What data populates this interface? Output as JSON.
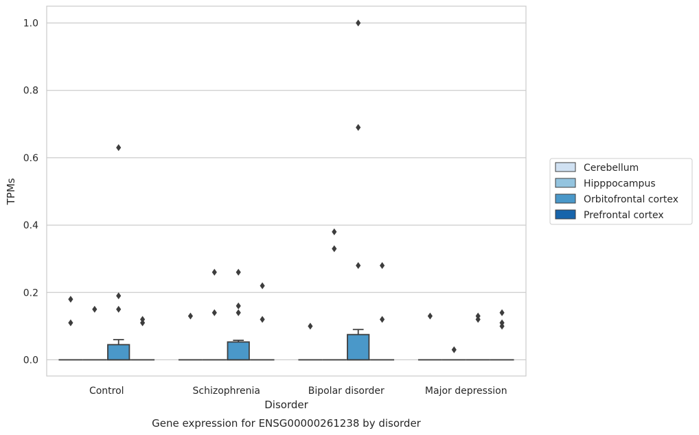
{
  "chart_data": {
    "type": "box",
    "title": "Gene expression for ENSG00000261238 by disorder",
    "xlabel": "Disorder",
    "ylabel": "TPMs",
    "ylim": [
      -0.048,
      1.05
    ],
    "yticks": [
      0.0,
      0.2,
      0.4,
      0.6,
      0.8,
      1.0
    ],
    "ytick_labels": [
      "0.0",
      "0.2",
      "0.4",
      "0.6",
      "0.8",
      "1.0"
    ],
    "grid": true,
    "legend_position": "right",
    "categories": [
      "Control",
      "Schizophrenia",
      "Bipolar disorder",
      "Major depression"
    ],
    "series": [
      {
        "name": "Cerebellum",
        "color": "#d0e1f2",
        "boxes": [
          {
            "q1": 0,
            "median": 0,
            "q3": 0,
            "whisker_low": 0,
            "whisker_high": 0,
            "outliers": [
              0.18,
              0.11
            ]
          },
          {
            "q1": 0,
            "median": 0,
            "q3": 0,
            "whisker_low": 0,
            "whisker_high": 0,
            "outliers": [
              0.13
            ]
          },
          {
            "q1": 0,
            "median": 0,
            "q3": 0,
            "whisker_low": 0,
            "whisker_high": 0,
            "outliers": [
              0.1
            ]
          },
          {
            "q1": 0,
            "median": 0,
            "q3": 0,
            "whisker_low": 0,
            "whisker_high": 0,
            "outliers": [
              0.13
            ]
          }
        ]
      },
      {
        "name": "Hipppocampus",
        "color": "#94c4df",
        "boxes": [
          {
            "q1": 0,
            "median": 0,
            "q3": 0,
            "whisker_low": 0,
            "whisker_high": 0,
            "outliers": [
              0.15
            ]
          },
          {
            "q1": 0,
            "median": 0,
            "q3": 0,
            "whisker_low": 0,
            "whisker_high": 0,
            "outliers": [
              0.26,
              0.14
            ]
          },
          {
            "q1": 0,
            "median": 0,
            "q3": 0,
            "whisker_low": 0,
            "whisker_high": 0,
            "outliers": [
              0.38,
              0.33
            ]
          },
          {
            "q1": 0,
            "median": 0,
            "q3": 0,
            "whisker_low": 0,
            "whisker_high": 0,
            "outliers": [
              0.03
            ]
          }
        ]
      },
      {
        "name": "Orbitofrontal cortex",
        "color": "#4a98c9",
        "boxes": [
          {
            "q1": 0,
            "median": 0,
            "q3": 0.045,
            "whisker_low": 0,
            "whisker_high": 0.06,
            "outliers": [
              0.63,
              0.19,
              0.15
            ]
          },
          {
            "q1": 0,
            "median": 0,
            "q3": 0.053,
            "whisker_low": 0,
            "whisker_high": 0.058,
            "outliers": [
              0.26,
              0.16,
              0.14
            ]
          },
          {
            "q1": 0,
            "median": 0,
            "q3": 0.075,
            "whisker_low": 0,
            "whisker_high": 0.09,
            "outliers": [
              1.0,
              0.69,
              0.28
            ]
          },
          {
            "q1": 0,
            "median": 0,
            "q3": 0,
            "whisker_low": 0,
            "whisker_high": 0,
            "outliers": [
              0.13,
              0.12
            ]
          }
        ]
      },
      {
        "name": "Prefrontal cortex",
        "color": "#1764ab",
        "boxes": [
          {
            "q1": 0,
            "median": 0,
            "q3": 0,
            "whisker_low": 0,
            "whisker_high": 0,
            "outliers": [
              0.12,
              0.11
            ]
          },
          {
            "q1": 0,
            "median": 0,
            "q3": 0,
            "whisker_low": 0,
            "whisker_high": 0,
            "outliers": [
              0.22,
              0.12
            ]
          },
          {
            "q1": 0,
            "median": 0,
            "q3": 0,
            "whisker_low": 0,
            "whisker_high": 0,
            "outliers": [
              0.28,
              0.12
            ]
          },
          {
            "q1": 0,
            "median": 0,
            "q3": 0,
            "whisker_low": 0,
            "whisker_high": 0,
            "outliers": [
              0.14,
              0.11,
              0.1
            ]
          }
        ]
      }
    ]
  }
}
